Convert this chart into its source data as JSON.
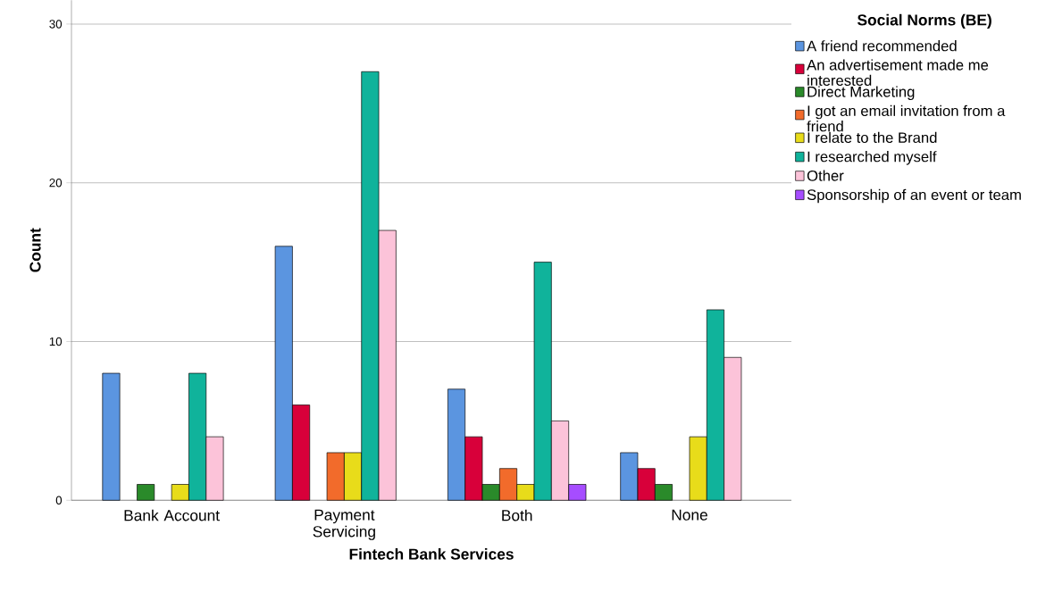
{
  "chart_data": {
    "type": "bar",
    "xlabel": "Fintech Bank Services",
    "ylabel": "Count",
    "legend_title": "Social Norms (BE)",
    "categories": [
      "Bank Account",
      "Payment Servicing",
      "Both",
      "None"
    ],
    "series": [
      {
        "name": "A friend recommended",
        "color": "#5b95e0",
        "values": [
          8,
          16,
          7,
          3
        ]
      },
      {
        "name": "An advertisement made me interested",
        "color": "#d8003a",
        "values": [
          null,
          6,
          4,
          2
        ]
      },
      {
        "name": "Direct Marketing",
        "color": "#2a8a2a",
        "values": [
          1,
          null,
          1,
          1
        ]
      },
      {
        "name": "I got an email invitation from a friend",
        "color": "#f26b2b",
        "values": [
          null,
          3,
          2,
          null
        ]
      },
      {
        "name": "I relate to the Brand",
        "color": "#e8dc1a",
        "values": [
          1,
          3,
          1,
          4
        ]
      },
      {
        "name": "I researched myself",
        "color": "#10b39b",
        "values": [
          8,
          27,
          15,
          12
        ]
      },
      {
        "name": "Other",
        "color": "#fcc3d9",
        "values": [
          4,
          17,
          5,
          9
        ]
      },
      {
        "name": "Sponsorship of an event or team",
        "color": "#a64dff",
        "values": [
          null,
          null,
          1,
          null
        ]
      }
    ],
    "ylim": [
      0,
      31.5
    ],
    "yticks": [
      0,
      10,
      20,
      30
    ],
    "grid": "y",
    "legend": "top right"
  }
}
